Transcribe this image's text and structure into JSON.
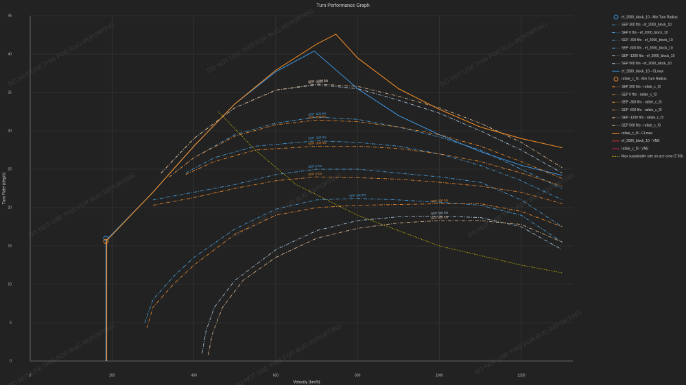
{
  "chart_data": {
    "type": "line",
    "title": "Turn Performance Graph",
    "x_label": "Velocity (km/h)",
    "y_label": "Turn Rate (deg/s)",
    "watermark": "DO NOT USE THIS FOR BUG REPORTING",
    "xlim": [
      0,
      1326
    ],
    "ylim": [
      0,
      45
    ],
    "xticks": [
      0,
      200,
      400,
      600,
      800,
      1000,
      1200
    ],
    "yticks": [
      0,
      5,
      10,
      15,
      20,
      25,
      30,
      35,
      40,
      45
    ],
    "grid": true,
    "legend": "right",
    "series": [
      {
        "name": "ef_2000_block_10 - Min Turn Radius",
        "color": "#3d8fd6",
        "style": "marker",
        "x": [
          185
        ],
        "values": [
          16
        ]
      },
      {
        "name": "SEP 300 ft/s - ef_2000_block_10",
        "color": "#4a9ed8",
        "style": "dashdot",
        "label": "SEP 300 ft/s",
        "x": [
          280,
          300,
          350,
          400,
          500,
          600,
          700,
          800,
          900,
          1000,
          1100,
          1200,
          1300
        ],
        "values": [
          5,
          8,
          11,
          13.5,
          17.2,
          19.8,
          21,
          21.2,
          21,
          20.7,
          20.3,
          19,
          15.5
        ]
      },
      {
        "name": "SEP 0 ft/s - ef_2000_block_10",
        "color": "#4a9ed8",
        "style": "dashdot",
        "label": "SEP 0 ft/s",
        "x": [
          300,
          400,
          500,
          600,
          700,
          800,
          900,
          1000,
          1100,
          1200,
          1300
        ],
        "values": [
          21,
          22,
          23,
          24.3,
          25,
          25,
          24.5,
          24,
          23.3,
          21,
          17.5
        ]
      },
      {
        "name": "SEP -300 ft/s - ef_2000_block_10",
        "color": "#4a9ed8",
        "style": "dashdot",
        "label": "SEP -300 ft/s",
        "x": [
          380,
          450,
          550,
          700,
          800,
          900,
          1000,
          1100,
          1200,
          1300
        ],
        "values": [
          24.5,
          26.5,
          28,
          28.7,
          28.5,
          28,
          27,
          25.5,
          23.5,
          21
        ]
      },
      {
        "name": "SEP -600 ft/s - ef_2000_block_10",
        "color": "#4a9ed8",
        "style": "dashdot",
        "label": "SEP -600 ft/s",
        "x": [
          340,
          400,
          500,
          600,
          700,
          800,
          900,
          1000,
          1100,
          1200,
          1300
        ],
        "values": [
          24,
          26.5,
          29.5,
          31,
          31.8,
          31.5,
          30.5,
          29.2,
          27.5,
          25,
          22.5
        ]
      },
      {
        "name": "SEP -1200 ft/s - ef_2000_block_10",
        "color": "#a9c4da",
        "style": "dashdot",
        "label": "SEP -1200 ft/s",
        "x": [
          320,
          400,
          500,
          600,
          700,
          800,
          900,
          1000,
          1100,
          1200,
          1300
        ],
        "values": [
          24.5,
          29,
          33,
          35.3,
          36,
          35.5,
          34,
          32.3,
          30,
          27.5,
          24.5
        ]
      },
      {
        "name": "SEP 500 ft/s - ef_2000_block_10",
        "color": "#a9c4da",
        "style": "dashdot",
        "label": "SEP 500 ft/s",
        "x": [
          420,
          430,
          450,
          500,
          600,
          700,
          800,
          900,
          1000,
          1100,
          1200,
          1300
        ],
        "values": [
          1,
          4,
          7,
          10.5,
          14.5,
          17,
          18.3,
          18.8,
          18.9,
          18.7,
          17.5,
          14.5
        ]
      },
      {
        "name": "ef_2000_block_10 - CLmax",
        "color": "#3d8fd6",
        "style": "solid",
        "x": [
          185,
          185,
          300,
          400,
          500,
          600,
          694,
          800,
          900,
          1000,
          1100,
          1200,
          1300
        ],
        "values": [
          0,
          15.7,
          22,
          28,
          33.5,
          37.7,
          40.4,
          35.5,
          32,
          29.5,
          27.3,
          25.5,
          24.2
        ]
      },
      {
        "name": "rafale_c_f3 - Min Turn Radius",
        "color": "#f08a24",
        "style": "marker",
        "x": [
          185
        ],
        "values": [
          15.6
        ]
      },
      {
        "name": "SEP 300 ft/s - rafale_c_f3",
        "color": "#e8892e",
        "style": "dashdot",
        "label": "SEP 300 ft/s",
        "x": [
          285,
          300,
          350,
          400,
          500,
          600,
          700,
          800,
          900,
          1000,
          1100,
          1200,
          1300
        ],
        "values": [
          4.3,
          7,
          10,
          12.5,
          16.5,
          19,
          20,
          20.3,
          20.4,
          20.5,
          20.5,
          19.5,
          17.5
        ]
      },
      {
        "name": "SEP 0 ft/s - rafale_c_f3",
        "color": "#e8892e",
        "style": "dashdot",
        "label": "SEP 0 ft/s",
        "x": [
          300,
          400,
          500,
          600,
          700,
          800,
          900,
          1000,
          1100,
          1200,
          1300
        ],
        "values": [
          20.3,
          21.3,
          22.5,
          23.5,
          24,
          23.9,
          23.7,
          23.3,
          22.8,
          22,
          20.5
        ]
      },
      {
        "name": "SEP -300 ft/s - rafale_c_f3",
        "color": "#e8892e",
        "style": "dashdot",
        "label": "SEP -300 ft/s",
        "x": [
          380,
          450,
          550,
          700,
          800,
          900,
          1000,
          1100,
          1200,
          1300
        ],
        "values": [
          24.3,
          26,
          27.5,
          28,
          28,
          27.7,
          27,
          26,
          24.5,
          22.8
        ]
      },
      {
        "name": "SEP -600 ft/s - rafale_c_f3",
        "color": "#e8892e",
        "style": "dashdot",
        "label": "SEP -600 ft/s",
        "x": [
          340,
          400,
          500,
          600,
          700,
          800,
          900,
          1000,
          1100,
          1200,
          1300
        ],
        "values": [
          24,
          26.5,
          29.3,
          30.8,
          31.4,
          31.2,
          30.5,
          29.5,
          28,
          26,
          23.8
        ]
      },
      {
        "name": "SEP -1200 ft/s - rafale_c_f3",
        "color": "#d8b48c",
        "style": "dashdot",
        "label": "SEP -1200 ft/s",
        "x": [
          320,
          400,
          500,
          600,
          700,
          800,
          900,
          1000,
          1100,
          1200,
          1300
        ],
        "values": [
          24.5,
          29,
          33,
          35.3,
          36.1,
          35.8,
          34.5,
          33,
          31,
          28.5,
          25.2
        ]
      },
      {
        "name": "SEP 500 ft/s - rafale_c_f3",
        "color": "#d8b48c",
        "style": "dashdot",
        "label": "SEP 500 ft/s",
        "x": [
          435,
          445,
          470,
          520,
          600,
          700,
          800,
          900,
          1000,
          1100,
          1200,
          1300
        ],
        "values": [
          0.8,
          3.5,
          7,
          10.5,
          13.5,
          16,
          17.3,
          18,
          18.3,
          18.3,
          17.8,
          15.5
        ]
      },
      {
        "name": "rafale_c_f3 - CLmax",
        "color": "#f08a24",
        "style": "solid",
        "x": [
          187,
          187,
          300,
          400,
          500,
          600,
          700,
          747,
          800,
          900,
          1000,
          1100,
          1200,
          1300
        ],
        "values": [
          0,
          15.7,
          22,
          28,
          33.5,
          37.9,
          41.3,
          42.6,
          39.5,
          35.5,
          32.8,
          30.5,
          29,
          27.8
        ]
      },
      {
        "name": "ef_2000_block_10 - VNE",
        "color": "#e03030",
        "style": "solid",
        "x": [],
        "values": []
      },
      {
        "name": "rafale_c_f3 - VNE",
        "color": "#d02060",
        "style": "solid",
        "x": [],
        "values": []
      },
      {
        "name": "Max sustainable rate on ace crew (7.5G)",
        "color": "#e8d800",
        "style": "dotted",
        "x": [
          460,
          550,
          650,
          800,
          1000,
          1200,
          1300
        ],
        "values": [
          32.5,
          27.5,
          23,
          19,
          15,
          12.5,
          11.5
        ]
      }
    ]
  }
}
